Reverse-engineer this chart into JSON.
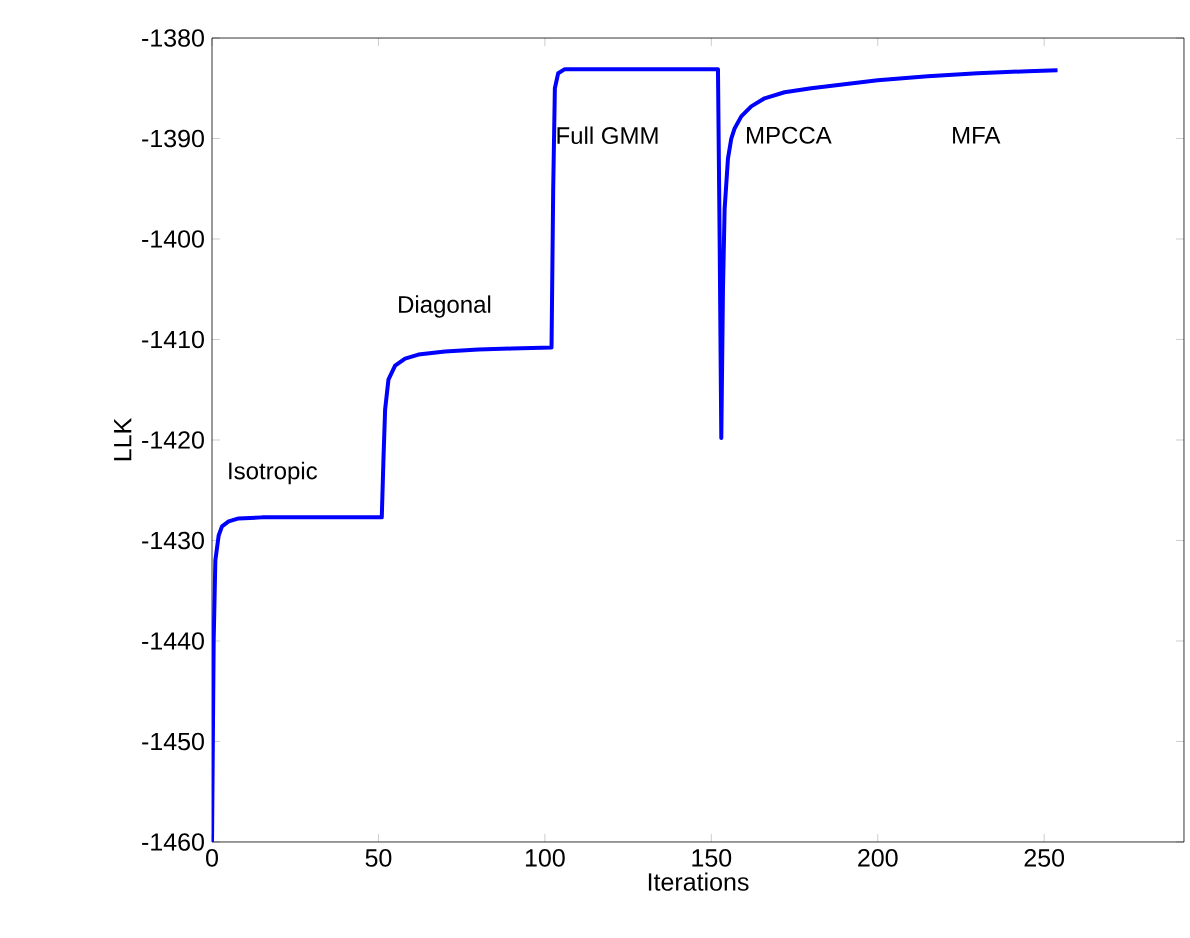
{
  "chart_data": {
    "type": "line",
    "xlabel": "Iterations",
    "ylabel": "LLK",
    "xlim": [
      0,
      292
    ],
    "ylim": [
      -1460,
      -1380
    ],
    "xticks": [
      0,
      50,
      100,
      150,
      200,
      250
    ],
    "yticks": [
      -1460,
      -1450,
      -1440,
      -1430,
      -1420,
      -1410,
      -1400,
      -1390,
      -1380
    ],
    "grid": false,
    "marker": "none",
    "line_style": "solid",
    "series": [
      {
        "color": "#0000ff",
        "x": [
          0,
          0.5,
          1,
          2,
          3,
          5,
          8,
          15,
          30,
          51,
          51.5,
          52,
          53,
          55,
          58,
          62,
          70,
          80,
          90,
          102,
          102.5,
          103,
          104,
          106,
          120,
          152,
          152.5,
          153,
          153.5,
          154,
          155,
          156,
          157,
          159,
          162,
          166,
          172,
          180,
          190,
          200,
          215,
          230,
          245,
          254
        ],
        "values": [
          -1460,
          -1440,
          -1432,
          -1429.5,
          -1428.6,
          -1428.1,
          -1427.8,
          -1427.7,
          -1427.7,
          -1427.7,
          -1422,
          -1417,
          -1414,
          -1412.6,
          -1411.9,
          -1411.5,
          -1411.2,
          -1411.0,
          -1410.9,
          -1410.8,
          -1395,
          -1385,
          -1383.5,
          -1383.1,
          -1383.1,
          -1383.1,
          -1400,
          -1419.8,
          -1405,
          -1397,
          -1392,
          -1390,
          -1389,
          -1387.8,
          -1386.8,
          -1386,
          -1385.4,
          -1385,
          -1384.6,
          -1384.2,
          -1383.8,
          -1383.5,
          -1383.3,
          -1383.2
        ]
      }
    ],
    "annotations": [
      "Isotropic",
      "Diagonal",
      "Full GMM",
      "MPCCA",
      "MFA"
    ]
  }
}
